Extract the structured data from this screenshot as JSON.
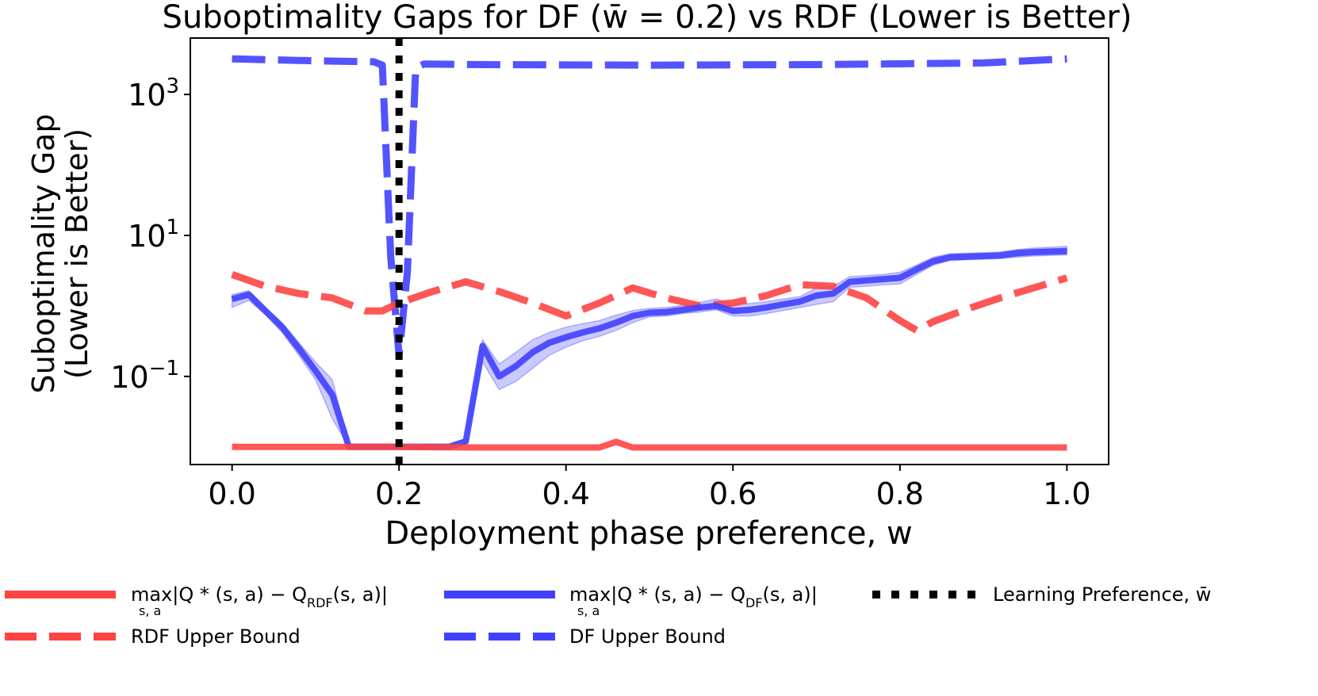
{
  "chart_data": {
    "type": "line",
    "title": "Suboptimality Gaps for DF (w̄ = 0.2) vs RDF (Lower is Better)",
    "xlabel": "Deployment phase preference, w",
    "ylabel_line1": "Suboptimality Gap",
    "ylabel_line2": "(Lower is Better)",
    "xlim": [
      -0.05,
      1.05
    ],
    "ylog10_lim": [
      -2.25,
      3.8
    ],
    "x_ticks": [
      0.0,
      0.2,
      0.4,
      0.6,
      0.8,
      1.0
    ],
    "x_tick_labels": [
      "0.0",
      "0.2",
      "0.4",
      "0.6",
      "0.8",
      "1.0"
    ],
    "y_ticks": [
      0.1,
      10,
      1000
    ],
    "y_tick_labels": [
      {
        "base": "10",
        "exp": "−1",
        "value": 0.1
      },
      {
        "base": "10",
        "exp": "1",
        "value": 10
      },
      {
        "base": "10",
        "exp": "3",
        "value": 1000
      }
    ],
    "vline": {
      "x": 0.2,
      "label": "Learning Preference, w̄"
    },
    "series": [
      {
        "name": "max_{s,a}|Q*(s,a) − Q*_RDF(s,a)|",
        "label_text": "max|Q * (s, a) − Q",
        "label_sub_var": "s, a",
        "label_sub_q": "RDF",
        "label_tail": "(s, a)|",
        "color": "#ff4444",
        "style": "solid",
        "x": [
          0.0,
          0.1,
          0.2,
          0.3,
          0.4,
          0.44,
          0.46,
          0.48,
          0.6,
          0.8,
          1.0
        ],
        "y": [
          0.01,
          0.01,
          0.01,
          0.0098,
          0.0098,
          0.0098,
          0.0118,
          0.0098,
          0.0098,
          0.0098,
          0.0098
        ]
      },
      {
        "name": "max_{s,a}|Q*(s,a) − Q*_DF(s,a)|",
        "label_text": "max|Q * (s, a) − Q",
        "label_sub_var": "s, a",
        "label_sub_q": "DF",
        "label_tail": "(s, a)|",
        "color": "#4040ff",
        "style": "solid",
        "x": [
          0.0,
          0.02,
          0.04,
          0.06,
          0.08,
          0.1,
          0.12,
          0.14,
          0.16,
          0.18,
          0.2,
          0.22,
          0.24,
          0.26,
          0.28,
          0.3,
          0.32,
          0.34,
          0.36,
          0.38,
          0.4,
          0.42,
          0.44,
          0.46,
          0.48,
          0.5,
          0.52,
          0.54,
          0.56,
          0.58,
          0.6,
          0.62,
          0.64,
          0.66,
          0.68,
          0.7,
          0.72,
          0.74,
          0.76,
          0.78,
          0.8,
          0.82,
          0.84,
          0.86,
          0.88,
          0.9,
          0.92,
          0.94,
          0.96,
          0.98,
          1.0
        ],
        "y": [
          1.25,
          1.45,
          0.85,
          0.5,
          0.25,
          0.12,
          0.055,
          0.01,
          0.01,
          0.01,
          0.01,
          0.01,
          0.01,
          0.01,
          0.012,
          0.27,
          0.1,
          0.14,
          0.22,
          0.3,
          0.36,
          0.42,
          0.48,
          0.58,
          0.72,
          0.8,
          0.82,
          0.88,
          0.95,
          1.0,
          0.85,
          0.88,
          0.95,
          1.05,
          1.15,
          1.4,
          1.5,
          2.2,
          2.3,
          2.4,
          2.5,
          3.3,
          4.3,
          4.9,
          5.0,
          5.1,
          5.2,
          5.6,
          5.8,
          5.9,
          6.0
        ],
        "band_lo": [
          0.95,
          1.2,
          0.75,
          0.42,
          0.2,
          0.09,
          0.025,
          0.01,
          0.01,
          0.01,
          0.01,
          0.01,
          0.01,
          0.01,
          0.011,
          0.16,
          0.065,
          0.085,
          0.13,
          0.2,
          0.26,
          0.32,
          0.37,
          0.45,
          0.58,
          0.7,
          0.72,
          0.78,
          0.82,
          0.88,
          0.72,
          0.72,
          0.78,
          0.86,
          0.95,
          1.05,
          1.15,
          1.85,
          1.9,
          2.0,
          2.05,
          2.8,
          3.8,
          4.4,
          4.5,
          4.6,
          4.7,
          4.9,
          5.1,
          5.2,
          5.3
        ],
        "band_hi": [
          1.45,
          1.65,
          0.95,
          0.58,
          0.3,
          0.16,
          0.09,
          0.011,
          0.011,
          0.011,
          0.011,
          0.011,
          0.011,
          0.011,
          0.013,
          0.33,
          0.15,
          0.22,
          0.33,
          0.42,
          0.5,
          0.56,
          0.62,
          0.74,
          0.86,
          0.92,
          0.95,
          1.02,
          1.12,
          1.25,
          1.05,
          1.08,
          1.15,
          1.25,
          1.35,
          1.8,
          1.9,
          2.6,
          2.7,
          2.8,
          3.0,
          3.8,
          4.9,
          5.5,
          5.6,
          5.7,
          5.8,
          6.3,
          6.6,
          6.8,
          7.0
        ]
      },
      {
        "name": "RDF Upper Bound",
        "color": "#ff4444",
        "style": "dashed",
        "x": [
          0.0,
          0.04,
          0.08,
          0.12,
          0.16,
          0.18,
          0.2,
          0.24,
          0.28,
          0.32,
          0.36,
          0.4,
          0.44,
          0.48,
          0.52,
          0.56,
          0.6,
          0.64,
          0.68,
          0.72,
          0.76,
          0.8,
          0.82,
          0.84,
          0.88,
          0.92,
          0.96,
          1.0
        ],
        "y": [
          2.8,
          1.9,
          1.5,
          1.3,
          0.85,
          0.85,
          1.1,
          1.6,
          2.2,
          1.6,
          1.1,
          0.72,
          1.1,
          1.8,
          1.3,
          1.0,
          1.1,
          1.4,
          2.0,
          1.9,
          1.3,
          0.62,
          0.45,
          0.6,
          0.9,
          1.3,
          1.8,
          2.5
        ]
      },
      {
        "name": "DF Upper Bound",
        "color": "#4040ff",
        "style": "dashed",
        "x": [
          0.0,
          0.1,
          0.17,
          0.18,
          0.19,
          0.2,
          0.21,
          0.22,
          0.23,
          0.3,
          0.5,
          0.7,
          0.9,
          1.0
        ],
        "y": [
          3200,
          3000,
          2900,
          2600,
          5,
          0.2,
          3,
          2400,
          2700,
          2650,
          2600,
          2650,
          2800,
          3200
        ]
      }
    ]
  }
}
